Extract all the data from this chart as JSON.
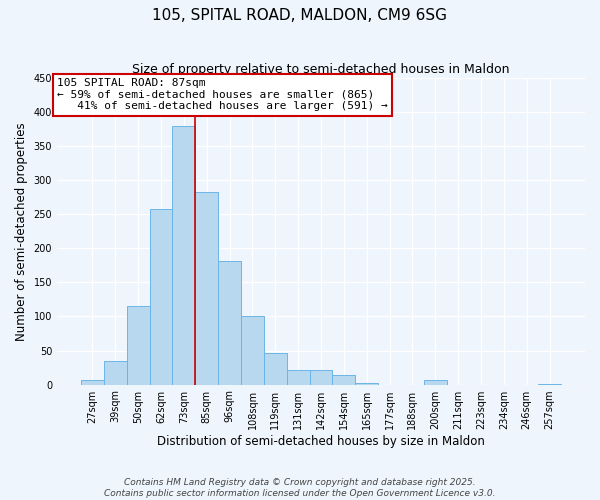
{
  "title": "105, SPITAL ROAD, MALDON, CM9 6SG",
  "subtitle": "Size of property relative to semi-detached houses in Maldon",
  "xlabel": "Distribution of semi-detached houses by size in Maldon",
  "ylabel": "Number of semi-detached properties",
  "categories": [
    "27sqm",
    "39sqm",
    "50sqm",
    "62sqm",
    "73sqm",
    "85sqm",
    "96sqm",
    "108sqm",
    "119sqm",
    "131sqm",
    "142sqm",
    "154sqm",
    "165sqm",
    "177sqm",
    "188sqm",
    "200sqm",
    "211sqm",
    "223sqm",
    "234sqm",
    "246sqm",
    "257sqm"
  ],
  "values": [
    7,
    35,
    115,
    258,
    380,
    283,
    182,
    100,
    47,
    22,
    21,
    14,
    3,
    0,
    0,
    6,
    0,
    0,
    0,
    0,
    1
  ],
  "bar_color": "#b8d8f0",
  "bar_edge_color": "#6bb4e8",
  "vline_x": 4.5,
  "vline_color": "#cc0000",
  "annotation_line1": "105 SPITAL ROAD: 87sqm",
  "annotation_line2": "← 59% of semi-detached houses are smaller (865)",
  "annotation_line3": "   41% of semi-detached houses are larger (591) →",
  "ylim": [
    0,
    450
  ],
  "yticks": [
    0,
    50,
    100,
    150,
    200,
    250,
    300,
    350,
    400,
    450
  ],
  "footer_line1": "Contains HM Land Registry data © Crown copyright and database right 2025.",
  "footer_line2": "Contains public sector information licensed under the Open Government Licence v3.0.",
  "bg_color": "#eef5fc",
  "grid_color": "#ffffff",
  "title_fontsize": 11,
  "subtitle_fontsize": 9,
  "label_fontsize": 8.5,
  "tick_fontsize": 7,
  "footer_fontsize": 6.5,
  "annot_fontsize": 8
}
